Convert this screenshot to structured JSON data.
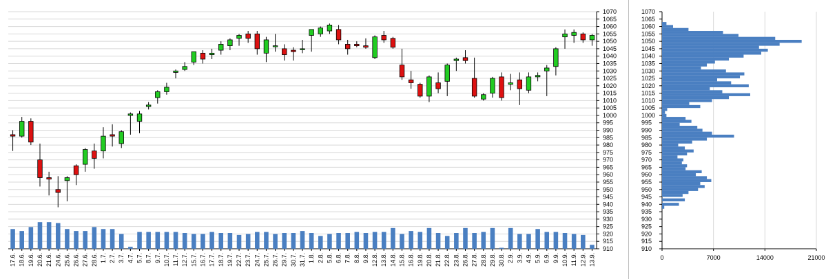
{
  "chart_data": [
    {
      "type": "candlestick",
      "title": "",
      "ylim": [
        910,
        1070
      ],
      "ytick_step": 5,
      "grid": true,
      "colors": {
        "up": "#22cc22",
        "down": "#dd1111",
        "wick": "#000000",
        "volume": "#4a7fc1"
      },
      "dates": [
        "17.6.",
        "18.6.",
        "19.6.",
        "20.6.",
        "21.6.",
        "24.6.",
        "25.6.",
        "26.6.",
        "27.6.",
        "28.6.",
        "1.7.",
        "2.7.",
        "3.7.",
        "4.7.",
        "5.7.",
        "8.7.",
        "9.7.",
        "10.7.",
        "11.7.",
        "12.7.",
        "15.7.",
        "16.7.",
        "17.7.",
        "18.7.",
        "19.7.",
        "22.7.",
        "23.7.",
        "24.7.",
        "25.7.",
        "26.7.",
        "29.7.",
        "30.7.",
        "31.7.",
        "1.8.",
        "2.8.",
        "5.8.",
        "6.8.",
        "7.8.",
        "8.8.",
        "9.8.",
        "12.8.",
        "13.8.",
        "14.8.",
        "15.8.",
        "16.8.",
        "19.8.",
        "20.8.",
        "21.8.",
        "22.8.",
        "23.8.",
        "26.8.",
        "27.8.",
        "28.8.",
        "29.8.",
        "30.8.",
        "2.9.",
        "3.9.",
        "4.9.",
        "5.9.",
        "6.9.",
        "9.9.",
        "10.9.",
        "11.9.",
        "12.9.",
        "13.9."
      ],
      "candles": [
        {
          "o": 987,
          "h": 990,
          "l": 976,
          "c": 986
        },
        {
          "o": 986,
          "h": 999,
          "l": 985,
          "c": 996
        },
        {
          "o": 996,
          "h": 998,
          "l": 980,
          "c": 982
        },
        {
          "o": 970,
          "h": 981,
          "l": 952,
          "c": 958
        },
        {
          "o": 958,
          "h": 962,
          "l": 946,
          "c": 957
        },
        {
          "o": 950,
          "h": 959,
          "l": 938,
          "c": 948
        },
        {
          "o": 956,
          "h": 959,
          "l": 942,
          "c": 958
        },
        {
          "o": 966,
          "h": 967,
          "l": 953,
          "c": 960
        },
        {
          "o": 967,
          "h": 978,
          "l": 962,
          "c": 977
        },
        {
          "o": 976,
          "h": 981,
          "l": 964,
          "c": 971
        },
        {
          "o": 976,
          "h": 992,
          "l": 971,
          "c": 986
        },
        {
          "o": 987,
          "h": 994,
          "l": 979,
          "c": 986
        },
        {
          "o": 981,
          "h": 990,
          "l": 978,
          "c": 989
        },
        {
          "o": 1000,
          "h": 1002,
          "l": 987,
          "c": 1001
        },
        {
          "o": 996,
          "h": 1003,
          "l": 988,
          "c": 1001
        },
        {
          "o": 1006,
          "h": 1009,
          "l": 1004,
          "c": 1007
        },
        {
          "o": 1012,
          "h": 1017,
          "l": 1008,
          "c": 1016
        },
        {
          "o": 1016,
          "h": 1022,
          "l": 1014,
          "c": 1019
        },
        {
          "o": 1029,
          "h": 1031,
          "l": 1025,
          "c": 1030
        },
        {
          "o": 1031,
          "h": 1036,
          "l": 1030,
          "c": 1033
        },
        {
          "o": 1036,
          "h": 1043,
          "l": 1034,
          "c": 1043
        },
        {
          "o": 1042,
          "h": 1044,
          "l": 1035,
          "c": 1038
        },
        {
          "o": 1041,
          "h": 1045,
          "l": 1038,
          "c": 1042
        },
        {
          "o": 1044,
          "h": 1050,
          "l": 1041,
          "c": 1048
        },
        {
          "o": 1047,
          "h": 1052,
          "l": 1044,
          "c": 1051
        },
        {
          "o": 1052,
          "h": 1055,
          "l": 1047,
          "c": 1054
        },
        {
          "o": 1055,
          "h": 1057,
          "l": 1049,
          "c": 1052
        },
        {
          "o": 1055,
          "h": 1057,
          "l": 1041,
          "c": 1045
        },
        {
          "o": 1042,
          "h": 1053,
          "l": 1036,
          "c": 1051
        },
        {
          "o": 1047,
          "h": 1055,
          "l": 1043,
          "c": 1047
        },
        {
          "o": 1045,
          "h": 1048,
          "l": 1037,
          "c": 1041
        },
        {
          "o": 1044,
          "h": 1046,
          "l": 1037,
          "c": 1043
        },
        {
          "o": 1045,
          "h": 1051,
          "l": 1042,
          "c": 1045
        },
        {
          "o": 1054,
          "h": 1058,
          "l": 1043,
          "c": 1058
        },
        {
          "o": 1055,
          "h": 1060,
          "l": 1053,
          "c": 1059
        },
        {
          "o": 1057,
          "h": 1062,
          "l": 1055,
          "c": 1061
        },
        {
          "o": 1058,
          "h": 1061,
          "l": 1048,
          "c": 1051
        },
        {
          "o": 1048,
          "h": 1051,
          "l": 1041,
          "c": 1045
        },
        {
          "o": 1048,
          "h": 1050,
          "l": 1046,
          "c": 1047
        },
        {
          "o": 1047,
          "h": 1052,
          "l": 1045,
          "c": 1046
        },
        {
          "o": 1039,
          "h": 1054,
          "l": 1038,
          "c": 1053
        },
        {
          "o": 1054,
          "h": 1057,
          "l": 1049,
          "c": 1051
        },
        {
          "o": 1052,
          "h": 1053,
          "l": 1045,
          "c": 1046
        },
        {
          "o": 1034,
          "h": 1045,
          "l": 1024,
          "c": 1026
        },
        {
          "o": 1024,
          "h": 1030,
          "l": 1018,
          "c": 1022
        },
        {
          "o": 1021,
          "h": 1022,
          "l": 1012,
          "c": 1013
        },
        {
          "o": 1013,
          "h": 1027,
          "l": 1009,
          "c": 1026
        },
        {
          "o": 1022,
          "h": 1029,
          "l": 1015,
          "c": 1018
        },
        {
          "o": 1023,
          "h": 1035,
          "l": 1013,
          "c": 1034
        },
        {
          "o": 1037,
          "h": 1039,
          "l": 1030,
          "c": 1038
        },
        {
          "o": 1039,
          "h": 1044,
          "l": 1035,
          "c": 1037
        },
        {
          "o": 1025,
          "h": 1039,
          "l": 1012,
          "c": 1013
        },
        {
          "o": 1011,
          "h": 1015,
          "l": 1010,
          "c": 1014
        },
        {
          "o": 1015,
          "h": 1026,
          "l": 1012,
          "c": 1025
        },
        {
          "o": 1026,
          "h": 1029,
          "l": 1010,
          "c": 1012
        },
        {
          "o": 1021,
          "h": 1028,
          "l": 1017,
          "c": 1022
        },
        {
          "o": 1024,
          "h": 1029,
          "l": 1007,
          "c": 1018
        },
        {
          "o": 1017,
          "h": 1029,
          "l": 1015,
          "c": 1026
        },
        {
          "o": 1026,
          "h": 1029,
          "l": 1023,
          "c": 1027
        },
        {
          "o": 1030,
          "h": 1034,
          "l": 1013,
          "c": 1032
        },
        {
          "o": 1033,
          "h": 1046,
          "l": 1027,
          "c": 1045
        },
        {
          "o": 1053,
          "h": 1058,
          "l": 1045,
          "c": 1055
        },
        {
          "o": 1054,
          "h": 1058,
          "l": 1049,
          "c": 1056
        },
        {
          "o": 1055,
          "h": 1056,
          "l": 1049,
          "c": 1051
        },
        {
          "o": 1051,
          "h": 1055,
          "l": 1047,
          "c": 1054
        }
      ],
      "volume": [
        20,
        18,
        22,
        27,
        27,
        26,
        20,
        18,
        18,
        22,
        20,
        20,
        15,
        2,
        17,
        17,
        17,
        17,
        17,
        16,
        15,
        15,
        17,
        16,
        16,
        14,
        15,
        17,
        17,
        15,
        16,
        16,
        18,
        16,
        13,
        15,
        16,
        16,
        17,
        16,
        17,
        17,
        21,
        15,
        18,
        17,
        21,
        16,
        13,
        16,
        21,
        16,
        17,
        21,
        1,
        21,
        15,
        15,
        20,
        17,
        17,
        16,
        15,
        14,
        4
      ]
    },
    {
      "type": "horizontal-bar",
      "title": "",
      "xlim": [
        0,
        21000
      ],
      "xticks": [
        "0",
        "7000",
        "14000",
        "21000"
      ],
      "ylim": [
        910,
        1070
      ],
      "ytick_step": 5,
      "color": "#4a7fc1",
      "bins": [
        {
          "price": 938,
          "v": 300
        },
        {
          "price": 940,
          "v": 2300
        },
        {
          "price": 943,
          "v": 3100
        },
        {
          "price": 946,
          "v": 2800
        },
        {
          "price": 948,
          "v": 3600
        },
        {
          "price": 950,
          "v": 4900
        },
        {
          "price": 952,
          "v": 5800
        },
        {
          "price": 954,
          "v": 5200
        },
        {
          "price": 956,
          "v": 6700
        },
        {
          "price": 958,
          "v": 6100
        },
        {
          "price": 960,
          "v": 4600
        },
        {
          "price": 962,
          "v": 5400
        },
        {
          "price": 964,
          "v": 3200
        },
        {
          "price": 966,
          "v": 3400
        },
        {
          "price": 968,
          "v": 2700
        },
        {
          "price": 970,
          "v": 2900
        },
        {
          "price": 972,
          "v": 2100
        },
        {
          "price": 974,
          "v": 3400
        },
        {
          "price": 976,
          "v": 4300
        },
        {
          "price": 978,
          "v": 3100
        },
        {
          "price": 980,
          "v": 2200
        },
        {
          "price": 982,
          "v": 4100
        },
        {
          "price": 984,
          "v": 6100
        },
        {
          "price": 986,
          "v": 9800
        },
        {
          "price": 988,
          "v": 6800
        },
        {
          "price": 990,
          "v": 5500
        },
        {
          "price": 992,
          "v": 4800
        },
        {
          "price": 994,
          "v": 2400
        },
        {
          "price": 996,
          "v": 4000
        },
        {
          "price": 998,
          "v": 3200
        },
        {
          "price": 1000,
          "v": 600
        },
        {
          "price": 1002,
          "v": 400
        },
        {
          "price": 1004,
          "v": 700
        },
        {
          "price": 1006,
          "v": 5200
        },
        {
          "price": 1008,
          "v": 3700
        },
        {
          "price": 1010,
          "v": 6800
        },
        {
          "price": 1012,
          "v": 9100
        },
        {
          "price": 1014,
          "v": 12000
        },
        {
          "price": 1016,
          "v": 8200
        },
        {
          "price": 1018,
          "v": 6500
        },
        {
          "price": 1020,
          "v": 11800
        },
        {
          "price": 1022,
          "v": 9400
        },
        {
          "price": 1024,
          "v": 7500
        },
        {
          "price": 1026,
          "v": 10600
        },
        {
          "price": 1028,
          "v": 11200
        },
        {
          "price": 1030,
          "v": 8700
        },
        {
          "price": 1032,
          "v": 5300
        },
        {
          "price": 1034,
          "v": 6100
        },
        {
          "price": 1036,
          "v": 7200
        },
        {
          "price": 1038,
          "v": 9100
        },
        {
          "price": 1040,
          "v": 11100
        },
        {
          "price": 1042,
          "v": 13500
        },
        {
          "price": 1044,
          "v": 14400
        },
        {
          "price": 1046,
          "v": 13200
        },
        {
          "price": 1048,
          "v": 16000
        },
        {
          "price": 1050,
          "v": 19000
        },
        {
          "price": 1052,
          "v": 15400
        },
        {
          "price": 1054,
          "v": 10400
        },
        {
          "price": 1056,
          "v": 8300
        },
        {
          "price": 1058,
          "v": 3600
        },
        {
          "price": 1060,
          "v": 1500
        },
        {
          "price": 1062,
          "v": 600
        }
      ]
    }
  ]
}
